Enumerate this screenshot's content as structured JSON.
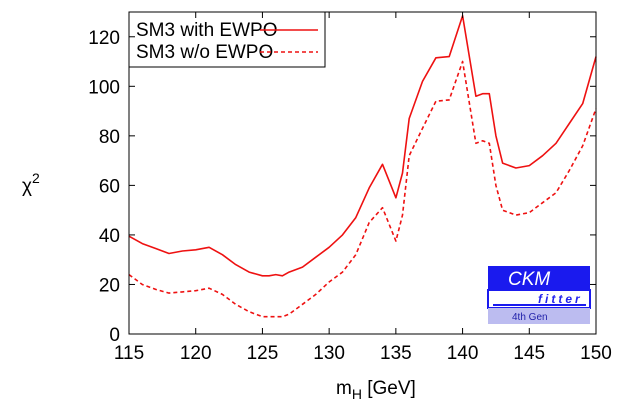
{
  "chart_data": {
    "type": "line",
    "xlabel_main": "m",
    "xlabel_sub": "H",
    "xlabel_unit": " [GeV]",
    "ylabel_main": "χ",
    "ylabel_sup": "2",
    "xlim": [
      115,
      150
    ],
    "ylim": [
      0,
      130
    ],
    "x_ticks": [
      115,
      120,
      125,
      130,
      135,
      140,
      145,
      150
    ],
    "y_ticks": [
      0,
      20,
      40,
      60,
      80,
      100,
      120
    ],
    "colors": {
      "series": "#ee1111",
      "logo_bg": "#1a1aee",
      "logo_band": "#bcbcf0"
    },
    "legend_position": "top-left",
    "series": [
      {
        "name": "SM3 with EWPO",
        "style": "solid",
        "x": [
          115,
          116,
          117,
          118,
          119,
          120,
          121,
          122,
          123,
          124,
          125,
          125.5,
          126,
          126.5,
          127,
          128,
          129,
          130,
          131,
          132,
          133,
          134,
          135,
          135.5,
          136,
          137,
          138,
          139,
          140,
          141,
          141.5,
          142,
          142.5,
          143,
          144,
          145,
          146,
          147,
          148,
          149,
          150
        ],
        "values": [
          39.5,
          36.5,
          34.5,
          32.5,
          33.5,
          34,
          35,
          32,
          28,
          25,
          23.5,
          23.5,
          24,
          23.5,
          25,
          27,
          31,
          35,
          40,
          47,
          59,
          68.5,
          55,
          65,
          87,
          102,
          111.5,
          112,
          128.5,
          96,
          97,
          97,
          80,
          69,
          67,
          68,
          72,
          77,
          85,
          93,
          112
        ]
      },
      {
        "name": "SM3 w/o EWPO",
        "style": "dashed",
        "x": [
          115,
          116,
          117,
          118,
          119,
          120,
          121,
          122,
          123,
          124,
          125,
          125.5,
          126,
          126.5,
          127,
          128,
          129,
          130,
          131,
          132,
          133,
          134,
          135,
          135.5,
          136,
          137,
          138,
          139,
          140,
          141,
          141.5,
          142,
          142.5,
          143,
          144,
          145,
          146,
          147,
          148,
          149,
          150
        ],
        "values": [
          24,
          20,
          18,
          16.5,
          17,
          17.5,
          18.5,
          16,
          12,
          9,
          7,
          7,
          7,
          7,
          8,
          12,
          16,
          21,
          25,
          32,
          45,
          51,
          37.5,
          48,
          72,
          83,
          94,
          94.5,
          110,
          77,
          78,
          77,
          60,
          50,
          48,
          49,
          53,
          57,
          66,
          76,
          91
        ]
      }
    ]
  },
  "logo": {
    "line1": "CKM",
    "line2": "fitter",
    "line3": "4th Gen"
  }
}
